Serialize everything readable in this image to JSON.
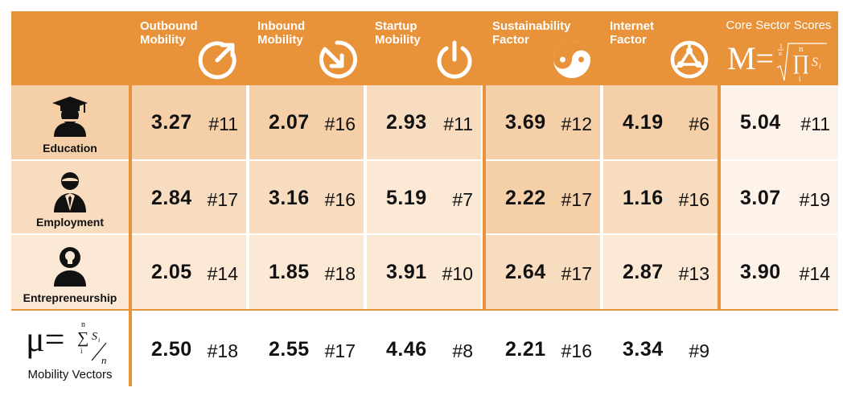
{
  "header": {
    "columns": [
      {
        "label": "Outbound\nMobility",
        "icon": "outbound-arrow-icon"
      },
      {
        "label": "Inbound\nMobility",
        "icon": "inbound-arrow-icon"
      },
      {
        "label": "Startup\nMobility",
        "icon": "power-icon"
      },
      {
        "label": "Sustainability\nFactor",
        "icon": "yin-yang-icon"
      },
      {
        "label": "Internet\nFactor",
        "icon": "network-globe-icon"
      }
    ],
    "core_label": "Core Sector Scores",
    "core_formula": {
      "lhs": "M=",
      "root_index_num": "1",
      "root_index_den": "n",
      "prod_upper": "n",
      "prod_lower": "i",
      "term": "S",
      "term_sub": "i"
    }
  },
  "rows": [
    {
      "label": "Education",
      "icon": "graduate-person-icon",
      "cells": [
        [
          "3.27",
          "#11"
        ],
        [
          "2.07",
          "#16"
        ],
        [
          "2.93",
          "#11"
        ],
        [
          "3.69",
          "#12"
        ],
        [
          "4.19",
          "#6"
        ]
      ],
      "core": [
        "5.04",
        "#11"
      ]
    },
    {
      "label": "Employment",
      "icon": "business-person-icon",
      "cells": [
        [
          "2.84",
          "#17"
        ],
        [
          "3.16",
          "#16"
        ],
        [
          "5.19",
          "#7"
        ],
        [
          "2.22",
          "#17"
        ],
        [
          "1.16",
          "#16"
        ]
      ],
      "core": [
        "3.07",
        "#19"
      ]
    },
    {
      "label": "Entrepreneurship",
      "icon": "idea-person-icon",
      "cells": [
        [
          "2.05",
          "#14"
        ],
        [
          "1.85",
          "#18"
        ],
        [
          "3.91",
          "#10"
        ],
        [
          "2.64",
          "#17"
        ],
        [
          "2.87",
          "#13"
        ]
      ],
      "core": [
        "3.90",
        "#14"
      ]
    }
  ],
  "mobility_vectors": {
    "label": "Mobility Vectors",
    "formula": {
      "lhs": "μ=",
      "sum_upper": "n",
      "sum_lower": "i",
      "term": "S",
      "term_sub": "i",
      "den": "n"
    },
    "cells": [
      [
        "2.50",
        "#18"
      ],
      [
        "2.55",
        "#17"
      ],
      [
        "4.46",
        "#8"
      ],
      [
        "2.21",
        "#16"
      ],
      [
        "3.34",
        "#9"
      ]
    ]
  },
  "colors": {
    "accent": "#e8923a",
    "cell_dark": "#f5cfa8",
    "cell_mid": "#f8dcbf",
    "cell_light": "#fbe9d6",
    "core_bg": "#fdf3e9",
    "white": "#ffffff"
  }
}
